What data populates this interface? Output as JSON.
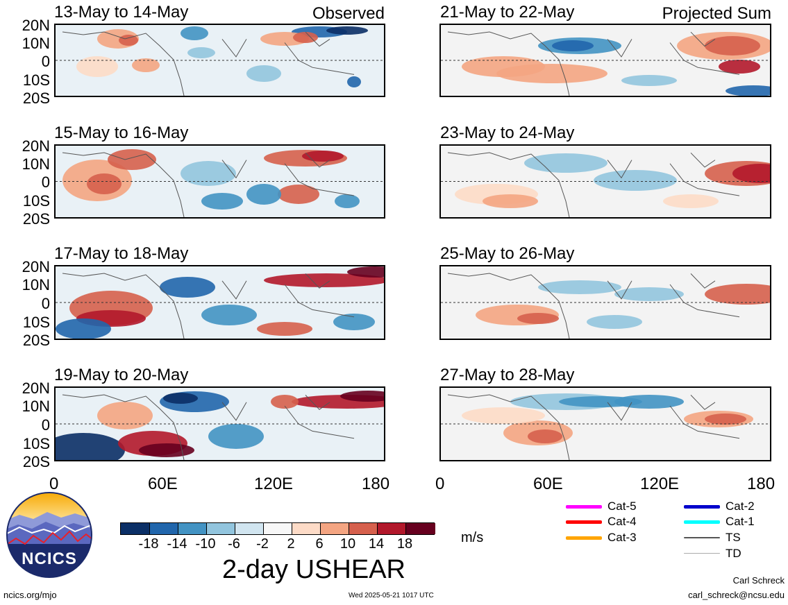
{
  "panels": [
    {
      "id": "p1",
      "label": "13-May to 14-May",
      "tag": "Observed",
      "col": 0,
      "row": 0
    },
    {
      "id": "p2",
      "label": "15-May to 16-May",
      "tag": "",
      "col": 0,
      "row": 1
    },
    {
      "id": "p3",
      "label": "17-May to 18-May",
      "tag": "",
      "col": 0,
      "row": 2
    },
    {
      "id": "p4",
      "label": "19-May to 20-May",
      "tag": "",
      "col": 0,
      "row": 3
    },
    {
      "id": "p5",
      "label": "21-May to 22-May",
      "tag": "Projected Sum",
      "col": 1,
      "row": 0
    },
    {
      "id": "p6",
      "label": "23-May to 24-May",
      "tag": "",
      "col": 1,
      "row": 1
    },
    {
      "id": "p7",
      "label": "25-May to 26-May",
      "tag": "",
      "col": 1,
      "row": 2
    },
    {
      "id": "p8",
      "label": "27-May to 28-May",
      "tag": "",
      "col": 1,
      "row": 3
    }
  ],
  "y_ticks": [
    "20N",
    "10N",
    "0",
    "10S",
    "20S"
  ],
  "x_ticks": [
    "0",
    "60E",
    "120E",
    "180"
  ],
  "colorbar": {
    "colors": [
      "#0b2f66",
      "#2166ac",
      "#4393c3",
      "#92c5de",
      "#d1e5f0",
      "#f7f7f7",
      "#fddbc7",
      "#f4a582",
      "#d6604d",
      "#b2182b",
      "#67001f"
    ],
    "labels": [
      "-18",
      "-14",
      "-10",
      "-6",
      "-2",
      "2",
      "6",
      "10",
      "14",
      "18"
    ],
    "units": "m/s",
    "title": "2-day USHEAR"
  },
  "legend": [
    {
      "label": "Cat-5",
      "color": "#ff00ff"
    },
    {
      "label": "Cat-4",
      "color": "#ff0000"
    },
    {
      "label": "Cat-3",
      "color": "#ffa500"
    },
    {
      "label": "Cat-2",
      "color": "#0000cc"
    },
    {
      "label": "Cat-1",
      "color": "#00ffff"
    },
    {
      "label": "TS",
      "color": "#555555"
    },
    {
      "label": "TD",
      "color": "#aaaaaa"
    }
  ],
  "logo_text": "NCICS",
  "footer": {
    "left": "ncics.org/mjo",
    "center": "Wed 2025-05-21 1017 UTC",
    "author": "Carl Schreck",
    "email": "carl_schreck@ncsu.edu"
  }
}
